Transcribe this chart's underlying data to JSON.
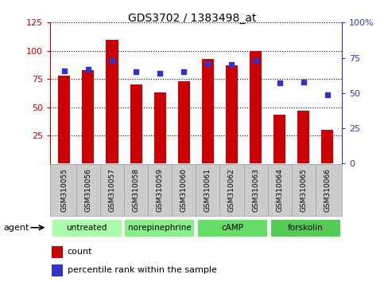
{
  "title": "GDS3702 / 1383498_at",
  "samples": [
    "GSM310055",
    "GSM310056",
    "GSM310057",
    "GSM310058",
    "GSM310059",
    "GSM310060",
    "GSM310061",
    "GSM310062",
    "GSM310063",
    "GSM310064",
    "GSM310065",
    "GSM310066"
  ],
  "counts": [
    78,
    83,
    110,
    70,
    63,
    73,
    93,
    87,
    100,
    43,
    47,
    30
  ],
  "percentiles": [
    66,
    67,
    73,
    65,
    64,
    65,
    71,
    70,
    73,
    57,
    58,
    49
  ],
  "agents": [
    {
      "label": "untreated",
      "start": 0,
      "end": 3,
      "color": "#aaffaa"
    },
    {
      "label": "norepinephrine",
      "start": 3,
      "end": 6,
      "color": "#88ee88"
    },
    {
      "label": "cAMP",
      "start": 6,
      "end": 9,
      "color": "#66dd66"
    },
    {
      "label": "forskolin",
      "start": 9,
      "end": 12,
      "color": "#55cc55"
    }
  ],
  "ylim_left": [
    0,
    125
  ],
  "ylim_right": [
    0,
    100
  ],
  "yticks_left": [
    25,
    50,
    75,
    100,
    125
  ],
  "yticks_right": [
    0,
    25,
    50,
    75,
    100
  ],
  "bar_color": "#cc0000",
  "dot_color": "#3333cc",
  "bg_color": "#ffffff",
  "axis_color_left": "#cc0000",
  "axis_color_right": "#3333cc",
  "legend_count_label": "count",
  "legend_pct_label": "percentile rank within the sample",
  "agent_label": "agent",
  "grid_color": "black",
  "sample_bg_color": "#cccccc",
  "agent_border_color": "#ffffff"
}
